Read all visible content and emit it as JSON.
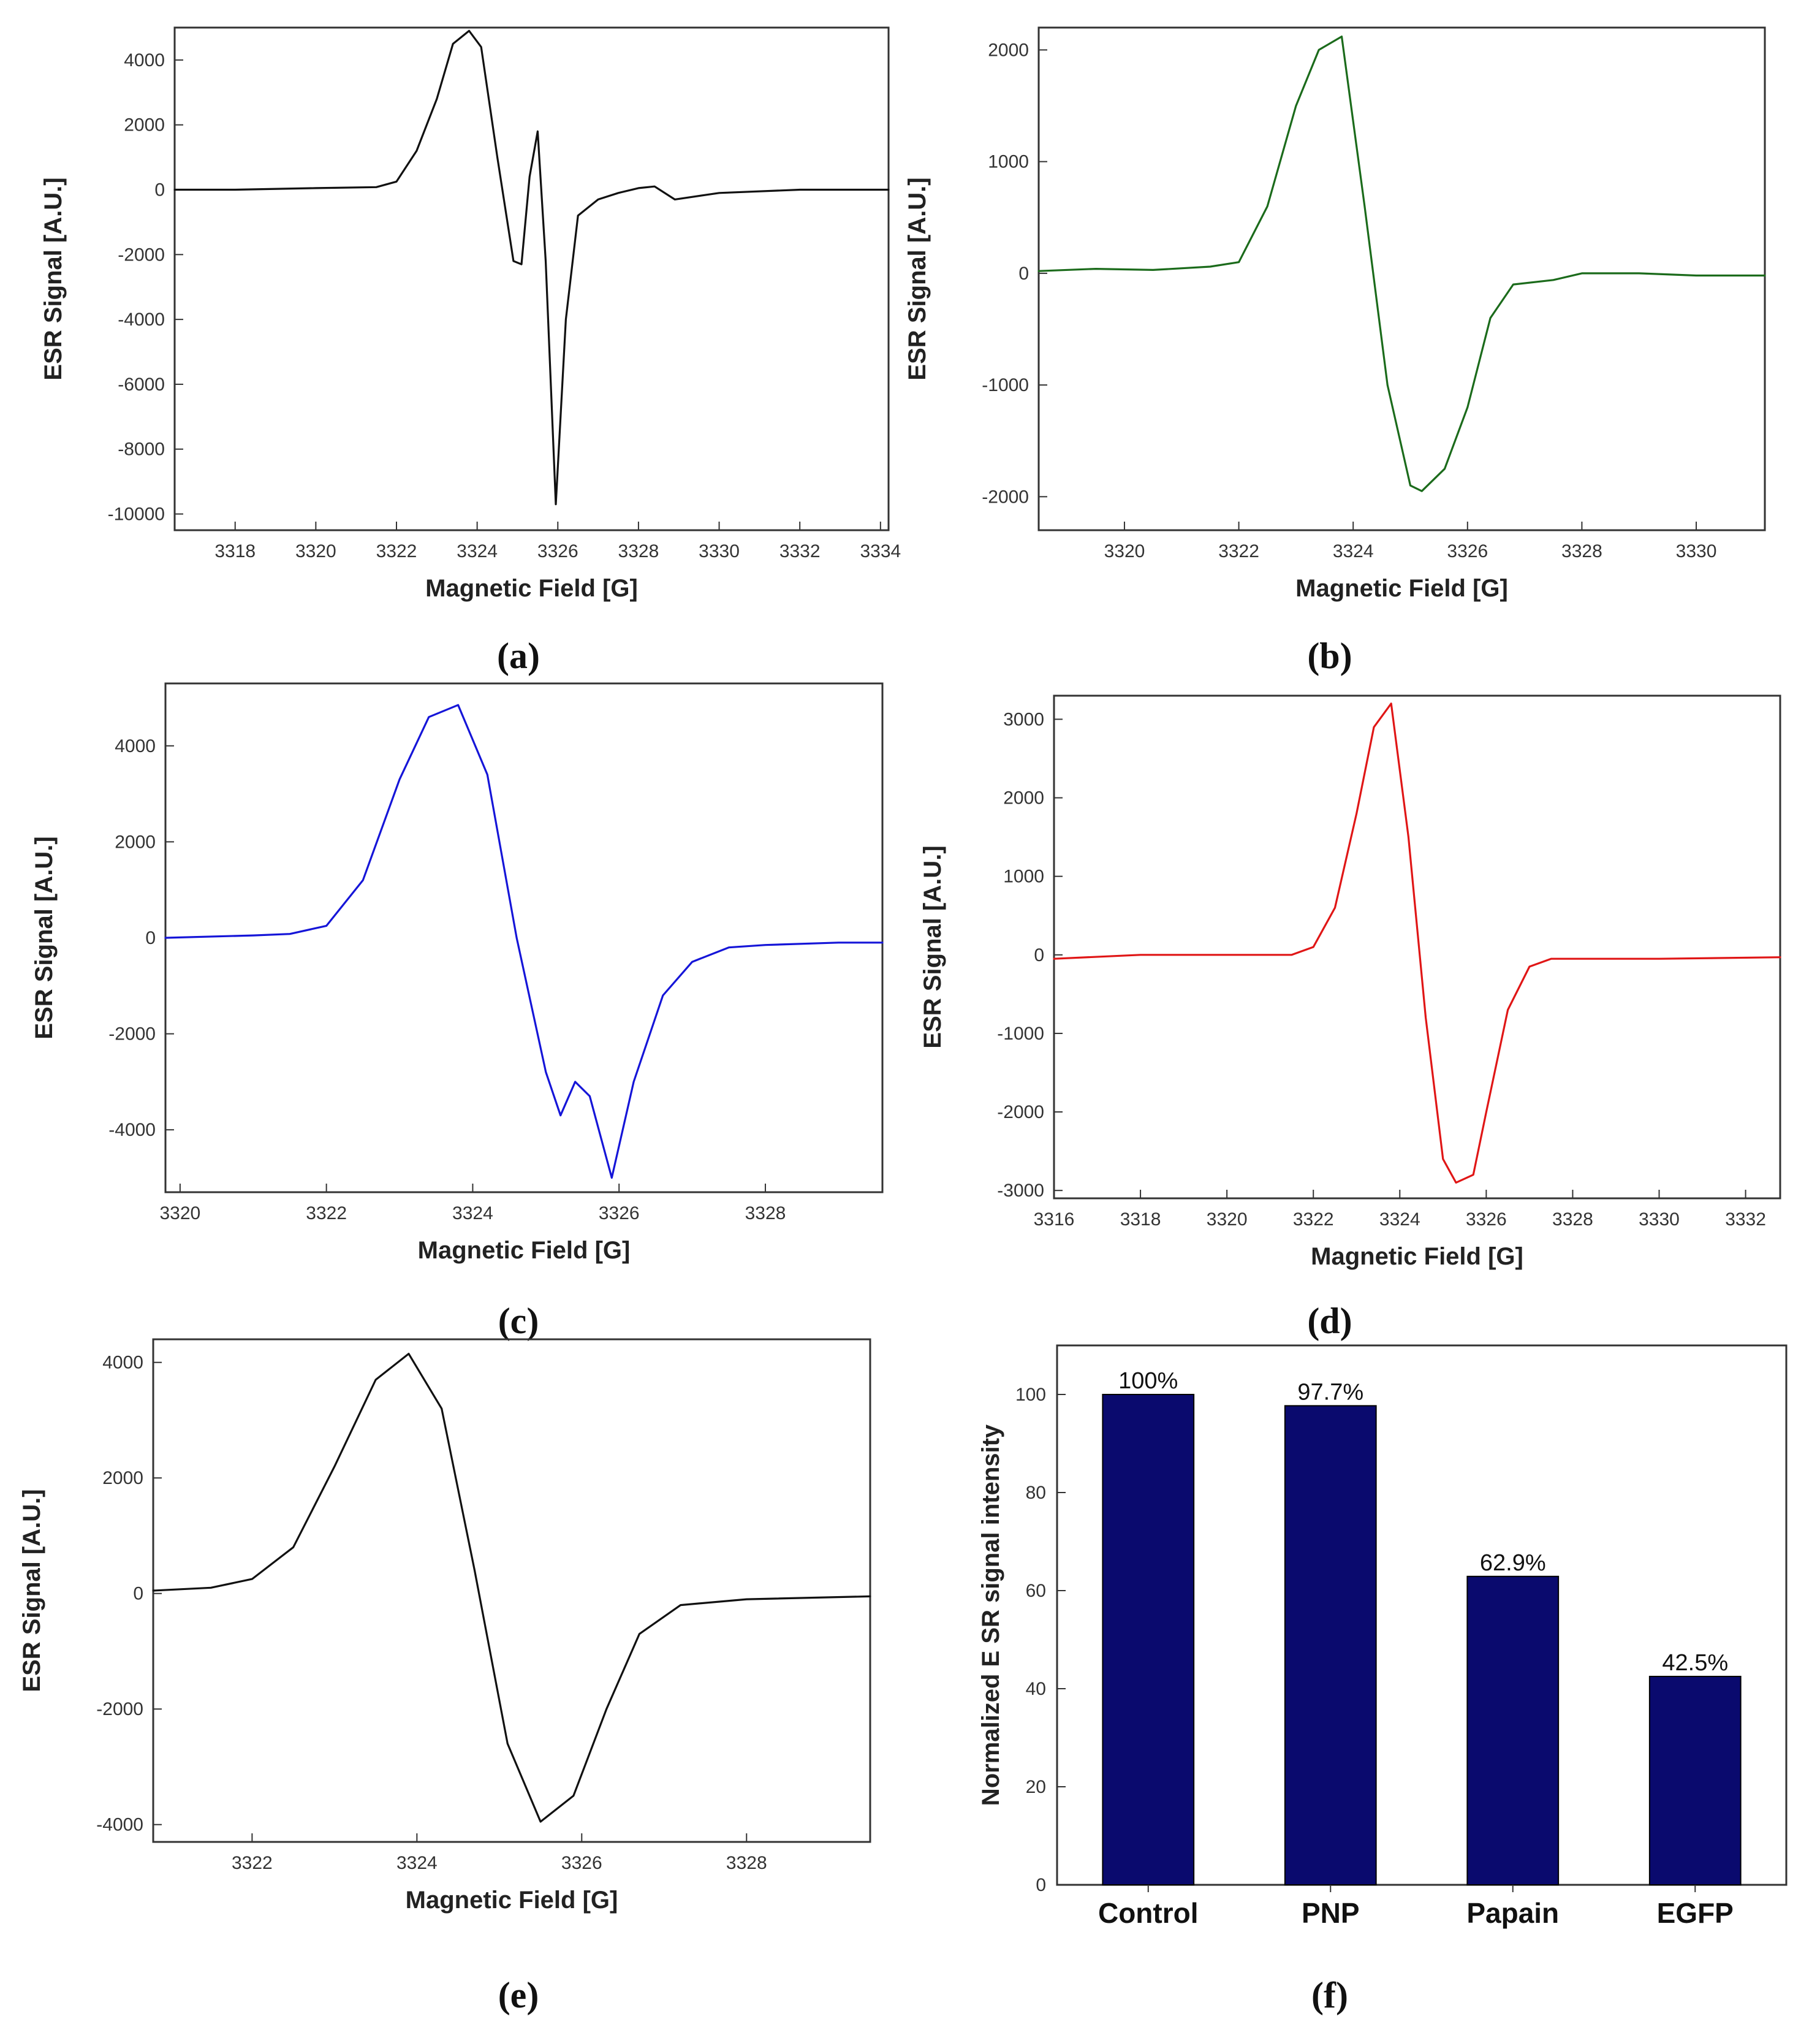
{
  "chart_data": [
    {
      "id": "a",
      "type": "line",
      "panel_label": "(a)",
      "xlabel": "Magnetic Field [G]",
      "ylabel": "ESR Signal [A.U.]",
      "xlim": [
        3316.5,
        3334.2
      ],
      "ylim": [
        -10500,
        5000
      ],
      "xticks": [
        3318,
        3320,
        3322,
        3324,
        3326,
        3328,
        3330,
        3332,
        3334
      ],
      "xtick_labels": [
        "3318",
        "3320",
        "3322",
        "3324",
        "3326",
        "3328",
        "3330",
        "3332",
        "3334"
      ],
      "yticks": [
        4000,
        2000,
        0,
        -2000,
        -4000,
        -6000,
        -8000,
        -10000
      ],
      "ytick_labels": [
        "4000",
        "2000",
        "0",
        "-2000",
        "-4000",
        "-6000",
        "-8000",
        "-10000"
      ],
      "color": "#111111",
      "series": [
        {
          "name": "a",
          "x": [
            3316.5,
            3318.0,
            3320.0,
            3321.5,
            3322.0,
            3322.5,
            3323.0,
            3323.4,
            3323.8,
            3324.1,
            3324.5,
            3324.9,
            3325.1,
            3325.3,
            3325.5,
            3325.7,
            3325.95,
            3326.2,
            3326.5,
            3327.0,
            3327.5,
            3328.0,
            3328.4,
            3328.9,
            3330.0,
            3332.0,
            3334.2
          ],
          "y": [
            0,
            0,
            50,
            80,
            250,
            1200,
            2800,
            4500,
            4900,
            4400,
            1000,
            -2200,
            -2300,
            400,
            1800,
            -2200,
            -9700,
            -4000,
            -800,
            -300,
            -100,
            50,
            100,
            -300,
            -100,
            0,
            0
          ]
        }
      ]
    },
    {
      "id": "b",
      "type": "line",
      "panel_label": "(b)",
      "xlabel": "Magnetic Field [G]",
      "ylabel": "ESR Signal [A.U.]",
      "xlim": [
        3318.5,
        3331.2
      ],
      "ylim": [
        -2300,
        2200
      ],
      "xticks": [
        3320,
        3322,
        3324,
        3326,
        3328,
        3330
      ],
      "xtick_labels": [
        "3320",
        "3322",
        "3324",
        "3326",
        "3328",
        "3330"
      ],
      "yticks": [
        2000,
        1000,
        0,
        -1000,
        -2000
      ],
      "ytick_labels": [
        "2000",
        "1000",
        "0",
        "-1000",
        "-2000"
      ],
      "color": "#1b6b1b",
      "series": [
        {
          "name": "b",
          "x": [
            3318.5,
            3319.5,
            3320.5,
            3321.5,
            3322.0,
            3322.5,
            3323.0,
            3323.4,
            3323.8,
            3324.2,
            3324.6,
            3325.0,
            3325.2,
            3325.6,
            3326.0,
            3326.4,
            3326.8,
            3327.5,
            3328.0,
            3329.0,
            3330.0,
            3331.2
          ],
          "y": [
            20,
            40,
            30,
            60,
            100,
            600,
            1500,
            2000,
            2120,
            600,
            -1000,
            -1900,
            -1950,
            -1750,
            -1200,
            -400,
            -100,
            -60,
            0,
            0,
            -20,
            -20
          ]
        }
      ]
    },
    {
      "id": "c",
      "type": "line",
      "panel_label": "(c)",
      "xlabel": "Magnetic Field [G]",
      "ylabel": "ESR Signal [A.U.]",
      "xlim": [
        3319.8,
        3329.6
      ],
      "ylim": [
        -5300,
        5300
      ],
      "xticks": [
        3320,
        3322,
        3324,
        3326,
        3328
      ],
      "xtick_labels": [
        "3320",
        "3322",
        "3324",
        "3326",
        "3328"
      ],
      "yticks": [
        4000,
        2000,
        0,
        -2000,
        -4000
      ],
      "ytick_labels": [
        "4000",
        "2000",
        "0",
        "-2000",
        "-4000"
      ],
      "color": "#1515d8",
      "series": [
        {
          "name": "c",
          "x": [
            3319.8,
            3321.0,
            3321.5,
            3322.0,
            3322.5,
            3323.0,
            3323.4,
            3323.8,
            3324.2,
            3324.6,
            3325.0,
            3325.2,
            3325.4,
            3325.6,
            3325.9,
            3326.2,
            3326.6,
            3327.0,
            3327.5,
            3328.0,
            3329.0,
            3329.6
          ],
          "y": [
            0,
            50,
            80,
            250,
            1200,
            3300,
            4600,
            4850,
            3400,
            0,
            -2800,
            -3700,
            -3000,
            -3300,
            -5000,
            -3000,
            -1200,
            -500,
            -200,
            -150,
            -100,
            -100
          ]
        }
      ]
    },
    {
      "id": "d",
      "type": "line",
      "panel_label": "(d)",
      "xlabel": "Magnetic Field [G]",
      "ylabel": "ESR Signal [A.U.]",
      "xlim": [
        3316.0,
        3332.8
      ],
      "ylim": [
        -3100,
        3300
      ],
      "xticks": [
        3316,
        3318,
        3320,
        3322,
        3324,
        3326,
        3328,
        3330,
        3332
      ],
      "xtick_labels": [
        "3316",
        "3318",
        "3320",
        "3322",
        "3324",
        "3326",
        "3328",
        "3330",
        "3332"
      ],
      "yticks": [
        3000,
        2000,
        1000,
        0,
        -1000,
        -2000,
        -3000
      ],
      "ytick_labels": [
        "3000",
        "2000",
        "1000",
        "0",
        "-1000",
        "-2000",
        "-3000"
      ],
      "color": "#e01616",
      "series": [
        {
          "name": "d",
          "x": [
            3316.0,
            3318.0,
            3320.0,
            3321.5,
            3322.0,
            3322.5,
            3323.0,
            3323.4,
            3323.8,
            3324.2,
            3324.6,
            3325.0,
            3325.3,
            3325.7,
            3326.0,
            3326.5,
            3327.0,
            3327.5,
            3328.0,
            3330.0,
            3332.8
          ],
          "y": [
            -50,
            0,
            0,
            0,
            100,
            600,
            1800,
            2900,
            3200,
            1500,
            -800,
            -2600,
            -2900,
            -2800,
            -2000,
            -700,
            -150,
            -50,
            -50,
            -50,
            -30
          ]
        }
      ]
    },
    {
      "id": "e",
      "type": "line",
      "panel_label": "(e)",
      "xlabel": "Magnetic Field [G]",
      "ylabel": "ESR Signal [A.U.]",
      "xlim": [
        3320.8,
        3329.5
      ],
      "ylim": [
        -4300,
        4400
      ],
      "xticks": [
        3322,
        3324,
        3326,
        3328
      ],
      "xtick_labels": [
        "3322",
        "3324",
        "3326",
        "3328"
      ],
      "yticks": [
        4000,
        2000,
        0,
        -2000,
        -4000
      ],
      "ytick_labels": [
        "4000",
        "2000",
        "0",
        "-2000",
        "-4000"
      ],
      "color": "#111111",
      "series": [
        {
          "name": "e",
          "x": [
            3320.8,
            3321.5,
            3322.0,
            3322.5,
            3323.0,
            3323.5,
            3323.9,
            3324.3,
            3324.7,
            3325.1,
            3325.5,
            3325.9,
            3326.3,
            3326.7,
            3327.2,
            3328.0,
            3329.5
          ],
          "y": [
            50,
            100,
            250,
            800,
            2200,
            3700,
            4150,
            3200,
            400,
            -2600,
            -3950,
            -3500,
            -2000,
            -700,
            -200,
            -100,
            -50
          ]
        }
      ]
    },
    {
      "id": "f",
      "type": "bar",
      "panel_label": "(f)",
      "xlabel": "",
      "ylabel": "Normalized E SR signal intensity",
      "ylim": [
        0,
        110
      ],
      "yticks": [
        0,
        20,
        40,
        60,
        80,
        100
      ],
      "ytick_labels": [
        "0",
        "20",
        "40",
        "60",
        "80",
        "100"
      ],
      "categories": [
        "Control",
        "PNP",
        "Papain",
        "EGFP"
      ],
      "values": [
        100,
        97.7,
        62.9,
        42.5
      ],
      "data_labels": [
        "100%",
        "97.7%",
        "62.9%",
        "42.5%"
      ],
      "bar_color": "#0a0a6e"
    }
  ]
}
